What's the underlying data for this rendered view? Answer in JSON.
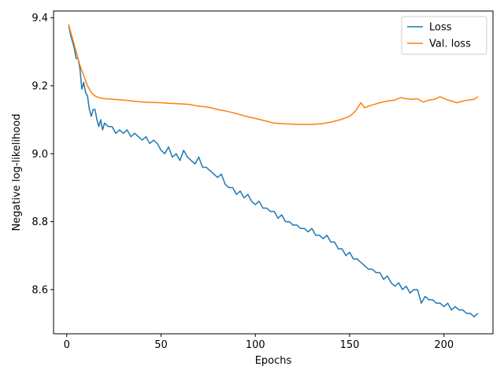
{
  "chart_data": {
    "type": "line",
    "xlabel": "Epochs",
    "ylabel": "Negative log-likelihood",
    "xlim": [
      -7,
      226
    ],
    "ylim": [
      8.47,
      9.42
    ],
    "xticks": [
      0,
      50,
      100,
      150,
      200
    ],
    "yticks": [
      8.6,
      8.8,
      9.0,
      9.2,
      9.4
    ],
    "ytick_labels": [
      "8.6",
      "8.8",
      "9.0",
      "9.2",
      "9.4"
    ],
    "grid": false,
    "legend_position": "top-right",
    "series": [
      {
        "name": "Loss",
        "color": "#1f77b4",
        "points": [
          [
            1,
            9.38
          ],
          [
            2,
            9.35
          ],
          [
            3,
            9.33
          ],
          [
            4,
            9.31
          ],
          [
            5,
            9.28
          ],
          [
            6,
            9.28
          ],
          [
            7,
            9.25
          ],
          [
            8,
            9.19
          ],
          [
            9,
            9.21
          ],
          [
            10,
            9.18
          ],
          [
            11,
            9.17
          ],
          [
            12,
            9.13
          ],
          [
            13,
            9.11
          ],
          [
            14,
            9.13
          ],
          [
            15,
            9.13
          ],
          [
            16,
            9.1
          ],
          [
            17,
            9.08
          ],
          [
            18,
            9.1
          ],
          [
            19,
            9.07
          ],
          [
            20,
            9.09
          ],
          [
            22,
            9.08
          ],
          [
            24,
            9.08
          ],
          [
            26,
            9.06
          ],
          [
            28,
            9.07
          ],
          [
            30,
            9.06
          ],
          [
            32,
            9.07
          ],
          [
            34,
            9.05
          ],
          [
            36,
            9.06
          ],
          [
            38,
            9.05
          ],
          [
            40,
            9.04
          ],
          [
            42,
            9.05
          ],
          [
            44,
            9.03
          ],
          [
            46,
            9.04
          ],
          [
            48,
            9.03
          ],
          [
            50,
            9.01
          ],
          [
            52,
            9.0
          ],
          [
            54,
            9.02
          ],
          [
            56,
            8.99
          ],
          [
            58,
            9.0
          ],
          [
            60,
            8.98
          ],
          [
            62,
            9.01
          ],
          [
            64,
            8.99
          ],
          [
            66,
            8.98
          ],
          [
            68,
            8.97
          ],
          [
            70,
            8.99
          ],
          [
            72,
            8.96
          ],
          [
            74,
            8.96
          ],
          [
            76,
            8.95
          ],
          [
            78,
            8.94
          ],
          [
            80,
            8.93
          ],
          [
            82,
            8.94
          ],
          [
            84,
            8.91
          ],
          [
            86,
            8.9
          ],
          [
            88,
            8.9
          ],
          [
            90,
            8.88
          ],
          [
            92,
            8.89
          ],
          [
            94,
            8.87
          ],
          [
            96,
            8.88
          ],
          [
            98,
            8.86
          ],
          [
            100,
            8.85
          ],
          [
            102,
            8.86
          ],
          [
            104,
            8.84
          ],
          [
            106,
            8.84
          ],
          [
            108,
            8.83
          ],
          [
            110,
            8.83
          ],
          [
            112,
            8.81
          ],
          [
            114,
            8.82
          ],
          [
            116,
            8.8
          ],
          [
            118,
            8.8
          ],
          [
            120,
            8.79
          ],
          [
            122,
            8.79
          ],
          [
            124,
            8.78
          ],
          [
            126,
            8.78
          ],
          [
            128,
            8.77
          ],
          [
            130,
            8.78
          ],
          [
            132,
            8.76
          ],
          [
            134,
            8.76
          ],
          [
            136,
            8.75
          ],
          [
            138,
            8.76
          ],
          [
            140,
            8.74
          ],
          [
            142,
            8.74
          ],
          [
            144,
            8.72
          ],
          [
            146,
            8.72
          ],
          [
            148,
            8.7
          ],
          [
            150,
            8.71
          ],
          [
            152,
            8.69
          ],
          [
            154,
            8.69
          ],
          [
            156,
            8.68
          ],
          [
            158,
            8.67
          ],
          [
            160,
            8.66
          ],
          [
            162,
            8.66
          ],
          [
            164,
            8.65
          ],
          [
            166,
            8.65
          ],
          [
            168,
            8.63
          ],
          [
            170,
            8.64
          ],
          [
            172,
            8.62
          ],
          [
            174,
            8.61
          ],
          [
            176,
            8.62
          ],
          [
            178,
            8.6
          ],
          [
            180,
            8.61
          ],
          [
            182,
            8.59
          ],
          [
            184,
            8.6
          ],
          [
            186,
            8.6
          ],
          [
            188,
            8.56
          ],
          [
            190,
            8.58
          ],
          [
            192,
            8.57
          ],
          [
            194,
            8.57
          ],
          [
            196,
            8.56
          ],
          [
            198,
            8.56
          ],
          [
            200,
            8.55
          ],
          [
            202,
            8.56
          ],
          [
            204,
            8.54
          ],
          [
            206,
            8.55
          ],
          [
            208,
            8.54
          ],
          [
            210,
            8.54
          ],
          [
            212,
            8.53
          ],
          [
            214,
            8.53
          ],
          [
            216,
            8.52
          ],
          [
            218,
            8.53
          ]
        ]
      },
      {
        "name": "Val. loss",
        "color": "#ff7f0e",
        "points": [
          [
            1,
            9.38
          ],
          [
            3,
            9.34
          ],
          [
            5,
            9.3
          ],
          [
            7,
            9.26
          ],
          [
            9,
            9.23
          ],
          [
            11,
            9.2
          ],
          [
            13,
            9.18
          ],
          [
            15,
            9.17
          ],
          [
            17,
            9.165
          ],
          [
            20,
            9.162
          ],
          [
            25,
            9.16
          ],
          [
            30,
            9.158
          ],
          [
            35,
            9.155
          ],
          [
            40,
            9.152
          ],
          [
            45,
            9.151
          ],
          [
            50,
            9.15
          ],
          [
            55,
            9.148
          ],
          [
            60,
            9.147
          ],
          [
            65,
            9.145
          ],
          [
            70,
            9.14
          ],
          [
            75,
            9.137
          ],
          [
            80,
            9.13
          ],
          [
            85,
            9.125
          ],
          [
            90,
            9.118
          ],
          [
            95,
            9.11
          ],
          [
            100,
            9.104
          ],
          [
            105,
            9.097
          ],
          [
            110,
            9.09
          ],
          [
            115,
            9.088
          ],
          [
            120,
            9.087
          ],
          [
            125,
            9.086
          ],
          [
            130,
            9.086
          ],
          [
            135,
            9.088
          ],
          [
            140,
            9.093
          ],
          [
            145,
            9.1
          ],
          [
            150,
            9.11
          ],
          [
            153,
            9.125
          ],
          [
            156,
            9.15
          ],
          [
            158,
            9.135
          ],
          [
            160,
            9.14
          ],
          [
            163,
            9.145
          ],
          [
            166,
            9.15
          ],
          [
            170,
            9.155
          ],
          [
            174,
            9.158
          ],
          [
            177,
            9.165
          ],
          [
            180,
            9.162
          ],
          [
            183,
            9.16
          ],
          [
            186,
            9.162
          ],
          [
            189,
            9.152
          ],
          [
            192,
            9.158
          ],
          [
            195,
            9.16
          ],
          [
            198,
            9.168
          ],
          [
            201,
            9.16
          ],
          [
            204,
            9.155
          ],
          [
            207,
            9.15
          ],
          [
            210,
            9.155
          ],
          [
            213,
            9.158
          ],
          [
            216,
            9.16
          ],
          [
            218,
            9.168
          ]
        ]
      }
    ]
  }
}
